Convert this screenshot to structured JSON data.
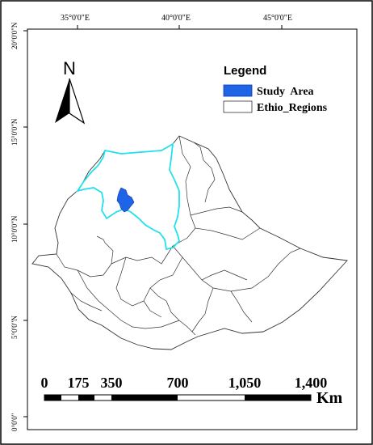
{
  "map": {
    "longitude_labels": [
      "35°0'0\"E",
      "40°0'0\"E",
      "45°0'0\"E"
    ],
    "latitude_labels": [
      "20°0'0\"N",
      "15°0'0\"N",
      "10°0'0\"N",
      "5°0'0\"N",
      "0°0'0\""
    ],
    "north_arrow": {
      "label": "N",
      "icon": "north-arrow-icon"
    },
    "legend": {
      "title": "Legend",
      "items": [
        {
          "label": "Study  Area",
          "color": "#1f64e6"
        },
        {
          "label": "Ethio_Regions",
          "color": "#ffffff"
        }
      ]
    },
    "highlight_color": "#22e0ee",
    "scale_bar": {
      "labels": [
        "0",
        "175",
        "350",
        "700",
        "1,050",
        "1,400"
      ],
      "unit": "Km"
    }
  }
}
